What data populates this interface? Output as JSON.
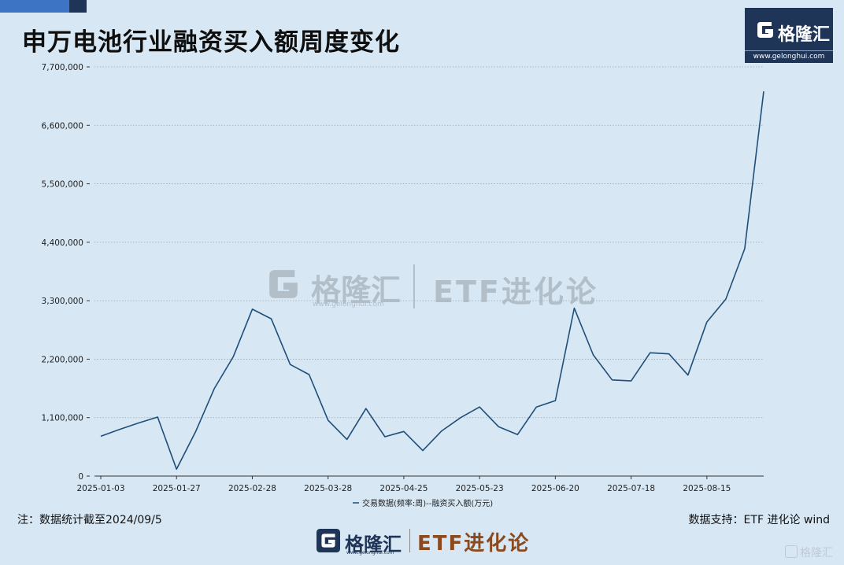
{
  "header": {
    "title": "申万电池行业融资买入额周度变化",
    "logo_brand": "格隆汇",
    "logo_url": "www.gelonghui.com"
  },
  "watermark": {
    "brand": "格隆汇",
    "url": "www.gelonghui.com",
    "etf": "ETF进化论"
  },
  "footer": {
    "note": "注：数据统计截至2024/09/5",
    "source": "数据支持：ETF 进化论 wind",
    "brand": "格隆汇",
    "url": "www.gelonghui.com",
    "etf": "ETF进化论",
    "corner": "格隆汇"
  },
  "colors": {
    "line": "#1f4e79",
    "grid": "#9aa9b5",
    "accent": "#1f3557",
    "etf": "#8a4a1e"
  },
  "chart_data": {
    "type": "line",
    "title": "申万电池行业融资买入额周度变化",
    "xlabel": "",
    "ylabel": "",
    "ylim": [
      0,
      7700000
    ],
    "yticks": [
      0,
      1100000,
      2200000,
      3300000,
      4400000,
      5500000,
      6600000,
      7700000
    ],
    "ytick_labels": [
      "0",
      "1,100,000",
      "2,200,000",
      "3,300,000",
      "4,400,000",
      "5,500,000",
      "6,600,000",
      "7,700,000"
    ],
    "xtick_labels": [
      "2025-01-03",
      "2025-01-27",
      "2025-02-28",
      "2025-03-28",
      "2025-04-25",
      "2025-05-23",
      "2025-06-20",
      "2025-07-18",
      "2025-08-15"
    ],
    "xtick_index": [
      0,
      4,
      8,
      12,
      16,
      20,
      24,
      28,
      32
    ],
    "legend": "交易数据(频率:周)--融资买入额(万元)",
    "grid": true,
    "series": [
      {
        "name": "交易数据(频率:周)--融资买入额(万元)",
        "values": [
          750000,
          880000,
          1000000,
          1110000,
          130000,
          830000,
          1650000,
          2250000,
          3140000,
          2960000,
          2100000,
          1910000,
          1050000,
          690000,
          1270000,
          740000,
          840000,
          480000,
          850000,
          1100000,
          1300000,
          930000,
          780000,
          1300000,
          1420000,
          3160000,
          2280000,
          1810000,
          1790000,
          2320000,
          2300000,
          1900000,
          2900000,
          3330000,
          4280000,
          7240000
        ]
      }
    ]
  }
}
